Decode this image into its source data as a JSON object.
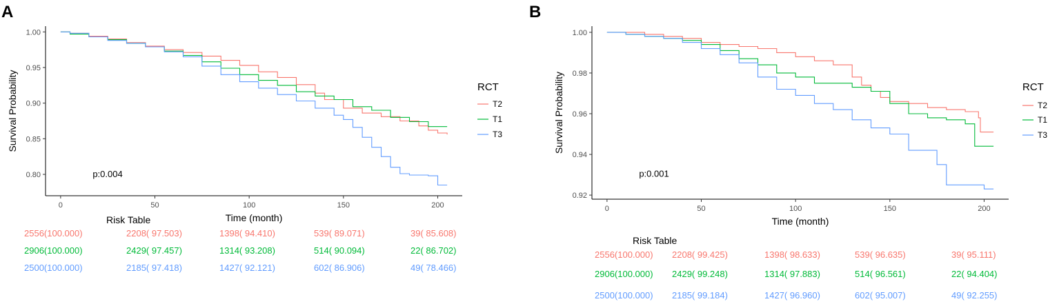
{
  "chart_data": [
    {
      "panel_label": "A",
      "type": "line",
      "subtype": "kaplan-meier",
      "xlabel": "Time (month)",
      "ylabel": "Survival Probability",
      "xlim": [
        -8,
        213
      ],
      "ylim": [
        0.77,
        1.008
      ],
      "xticks": [
        0,
        50,
        100,
        150,
        200
      ],
      "yticks": [
        0.8,
        0.85,
        0.9,
        0.95,
        1.0
      ],
      "ytick_labels": [
        "0.80",
        "0.85",
        "0.90",
        "0.95",
        "1.00"
      ],
      "legend": {
        "title": "RCT",
        "position": "right"
      },
      "p_value": "p:0.004",
      "p_value_pos": [
        17,
        0.796
      ],
      "series": [
        {
          "name": "T2",
          "color": "#F8766D",
          "x": [
            0,
            5,
            15,
            25,
            35,
            45,
            55,
            65,
            75,
            85,
            95,
            105,
            115,
            125,
            135,
            140,
            150,
            160,
            170,
            180,
            190,
            195,
            200,
            205
          ],
          "y": [
            1.0,
            0.998,
            0.994,
            0.99,
            0.985,
            0.98,
            0.975,
            0.971,
            0.966,
            0.96,
            0.953,
            0.944,
            0.936,
            0.926,
            0.914,
            0.905,
            0.893,
            0.886,
            0.881,
            0.875,
            0.868,
            0.862,
            0.858,
            0.856
          ]
        },
        {
          "name": "T1",
          "color": "#00BA38",
          "x": [
            0,
            5,
            15,
            25,
            35,
            45,
            55,
            65,
            75,
            85,
            95,
            105,
            115,
            125,
            135,
            145,
            155,
            165,
            175,
            185,
            195,
            205
          ],
          "y": [
            1.0,
            0.997,
            0.993,
            0.989,
            0.984,
            0.979,
            0.973,
            0.967,
            0.958,
            0.949,
            0.94,
            0.932,
            0.925,
            0.916,
            0.91,
            0.905,
            0.895,
            0.89,
            0.88,
            0.874,
            0.867,
            0.867
          ]
        },
        {
          "name": "T3",
          "color": "#619CFF",
          "x": [
            0,
            5,
            15,
            25,
            35,
            45,
            55,
            65,
            75,
            85,
            95,
            105,
            115,
            125,
            135,
            145,
            150,
            155,
            160,
            165,
            170,
            175,
            180,
            185,
            195,
            200,
            205
          ],
          "y": [
            1.0,
            0.998,
            0.993,
            0.988,
            0.984,
            0.979,
            0.972,
            0.965,
            0.952,
            0.94,
            0.93,
            0.921,
            0.912,
            0.903,
            0.893,
            0.883,
            0.877,
            0.866,
            0.852,
            0.838,
            0.825,
            0.81,
            0.801,
            0.799,
            0.798,
            0.785,
            0.785
          ]
        }
      ],
      "risk_table": {
        "title": "Risk Table",
        "rows": [
          {
            "name": "T2",
            "color": "#F8766D",
            "cells": [
              "2556(100.000)",
              "2208( 97.503)",
              "1398( 94.410)",
              "539( 89.071)",
              "39( 85.608)"
            ]
          },
          {
            "name": "T1",
            "color": "#00BA38",
            "cells": [
              "2906(100.000)",
              "2429( 97.457)",
              "1314( 93.208)",
              "514( 90.094)",
              "22( 86.702)"
            ]
          },
          {
            "name": "T3",
            "color": "#619CFF",
            "cells": [
              "2500(100.000)",
              "2185( 97.418)",
              "1427( 92.121)",
              "602( 86.906)",
              "49( 78.466)"
            ]
          }
        ]
      }
    },
    {
      "panel_label": "B",
      "type": "line",
      "subtype": "kaplan-meier",
      "xlabel": "Time (month)",
      "ylabel": "Survival Probability",
      "xlim": [
        -8,
        213
      ],
      "ylim": [
        0.918,
        1.003
      ],
      "xticks": [
        0,
        50,
        100,
        150,
        200
      ],
      "yticks": [
        0.92,
        0.94,
        0.96,
        0.98,
        1.0
      ],
      "ytick_labels": [
        "0.92",
        "0.94",
        "0.96",
        "0.98",
        "1.00"
      ],
      "legend": {
        "title": "RCT",
        "position": "right"
      },
      "p_value": "p:0.001",
      "p_value_pos": [
        17,
        0.929
      ],
      "series": [
        {
          "name": "T2",
          "color": "#F8766D",
          "x": [
            0,
            10,
            20,
            30,
            40,
            50,
            60,
            70,
            80,
            90,
            100,
            110,
            120,
            130,
            135,
            140,
            145,
            150,
            160,
            170,
            180,
            190,
            197,
            198,
            205
          ],
          "y": [
            1.0,
            1.0,
            0.999,
            0.998,
            0.997,
            0.995,
            0.994,
            0.993,
            0.992,
            0.99,
            0.988,
            0.986,
            0.984,
            0.978,
            0.974,
            0.971,
            0.968,
            0.966,
            0.965,
            0.963,
            0.962,
            0.961,
            0.958,
            0.951,
            0.951
          ]
        },
        {
          "name": "T1",
          "color": "#00BA38",
          "x": [
            0,
            10,
            20,
            30,
            40,
            50,
            60,
            70,
            80,
            90,
            100,
            110,
            120,
            130,
            140,
            150,
            160,
            170,
            180,
            190,
            195,
            205
          ],
          "y": [
            1.0,
            0.999,
            0.998,
            0.997,
            0.996,
            0.994,
            0.991,
            0.987,
            0.984,
            0.98,
            0.978,
            0.975,
            0.975,
            0.973,
            0.971,
            0.965,
            0.96,
            0.958,
            0.957,
            0.955,
            0.944,
            0.944
          ]
        },
        {
          "name": "T3",
          "color": "#619CFF",
          "x": [
            0,
            10,
            20,
            30,
            40,
            50,
            60,
            70,
            80,
            90,
            100,
            110,
            120,
            130,
            140,
            150,
            155,
            160,
            170,
            175,
            180,
            190,
            200,
            205
          ],
          "y": [
            1.0,
            0.999,
            0.998,
            0.997,
            0.995,
            0.992,
            0.989,
            0.985,
            0.978,
            0.972,
            0.969,
            0.965,
            0.962,
            0.957,
            0.953,
            0.95,
            0.95,
            0.942,
            0.942,
            0.935,
            0.925,
            0.925,
            0.923,
            0.923
          ]
        }
      ],
      "risk_table": {
        "title": "Risk Table",
        "rows": [
          {
            "name": "T2",
            "color": "#F8766D",
            "cells": [
              "2556(100.000)",
              "2208( 99.425)",
              "1398( 98.633)",
              "539( 96.635)",
              "39( 95.111)"
            ]
          },
          {
            "name": "T1",
            "color": "#00BA38",
            "cells": [
              "2906(100.000)",
              "2429( 99.248)",
              "1314( 97.883)",
              "514( 96.561)",
              "22( 94.404)"
            ]
          },
          {
            "name": "T3",
            "color": "#619CFF",
            "cells": [
              "2500(100.000)",
              "2185( 99.184)",
              "1427( 96.960)",
              "602( 95.007)",
              "49( 92.255)"
            ]
          }
        ]
      }
    }
  ]
}
